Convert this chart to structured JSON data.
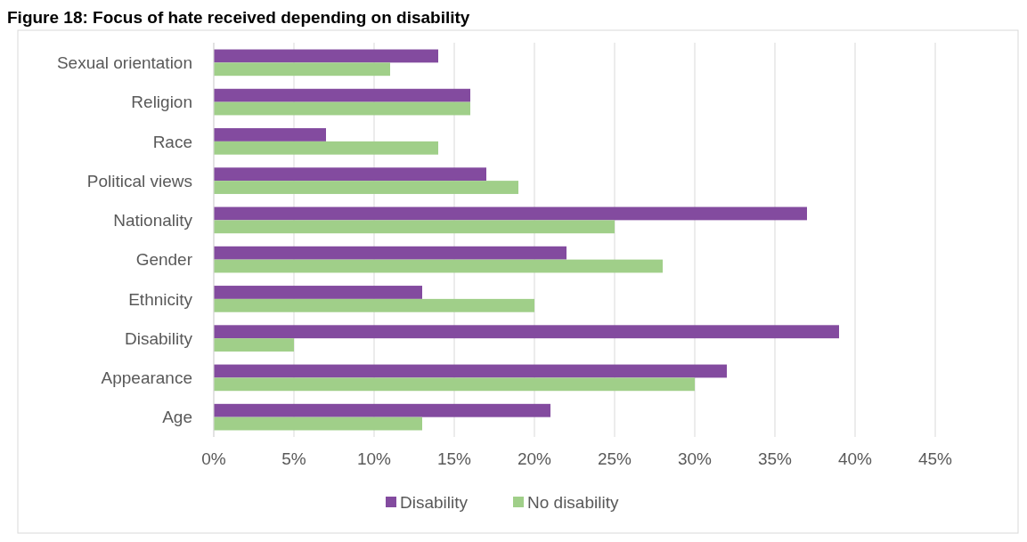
{
  "chart_data": {
    "type": "bar",
    "orientation": "horizontal",
    "title": "Figure 18: Focus of hate received depending on disability",
    "categories": [
      "Sexual orientation",
      "Religion",
      "Race",
      "Political views",
      "Nationality",
      "Gender",
      "Ethnicity",
      "Disability",
      "Appearance",
      "Age"
    ],
    "series": [
      {
        "name": "Disability",
        "color": "#834b9f",
        "values": [
          14,
          16,
          7,
          17,
          37,
          22,
          13,
          39,
          32,
          21
        ]
      },
      {
        "name": "No disability",
        "color": "#a0cf89",
        "values": [
          11,
          16,
          14,
          19,
          25,
          28,
          20,
          5,
          30,
          13
        ]
      }
    ],
    "xlim": [
      0,
      45
    ],
    "xticks": [
      {
        "value": 0,
        "label": "0%"
      },
      {
        "value": 5,
        "label": "5%"
      },
      {
        "value": 10,
        "label": "10%"
      },
      {
        "value": 15,
        "label": "15%"
      },
      {
        "value": 20,
        "label": "20%"
      },
      {
        "value": 25,
        "label": "25%"
      },
      {
        "value": 30,
        "label": "30%"
      },
      {
        "value": 35,
        "label": "35%"
      },
      {
        "value": 40,
        "label": "40%"
      },
      {
        "value": 45,
        "label": "45%"
      }
    ],
    "grid": "x",
    "legend": "bottom"
  }
}
